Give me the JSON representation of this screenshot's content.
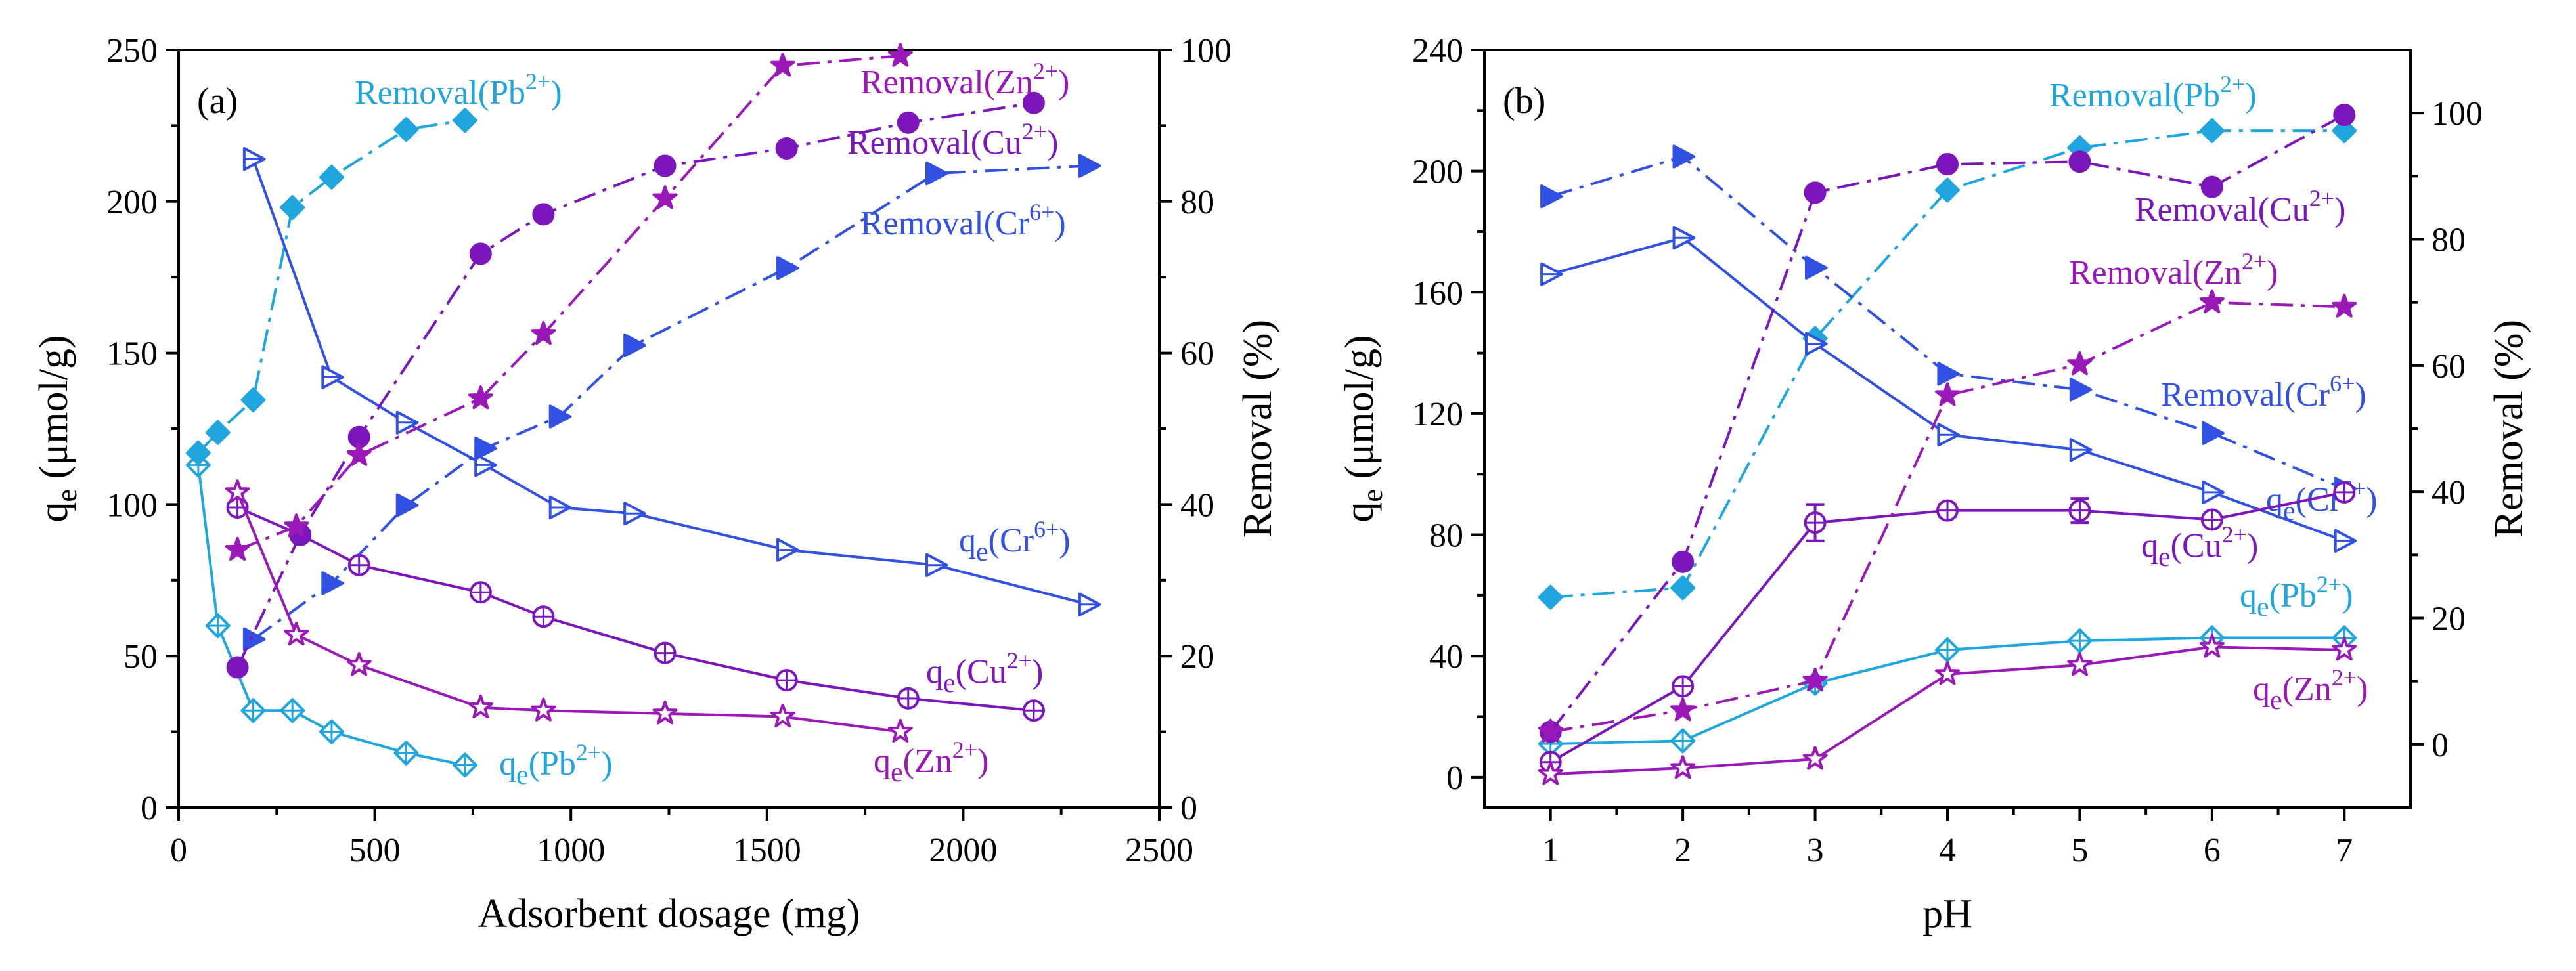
{
  "figure": {
    "colors": {
      "pb": "#1fa6df",
      "cr": "#3051e4",
      "cu": "#7b16bd",
      "zn": "#9a17b8"
    }
  },
  "chart_data": [
    {
      "type": "line",
      "panel_label": "(a)",
      "title": "",
      "xlabel": "Adsorbent dosage (mg)",
      "ylabel_left": "q",
      "ylabel_left_sub": "e",
      "ylabel_left_unit": " (μmol/g)",
      "ylabel_right": "Removal (%)",
      "xlim": [
        0,
        2500
      ],
      "ylim_left": [
        0,
        250
      ],
      "ylim_right": [
        0,
        100
      ],
      "xticks": [
        "0",
        "500",
        "1000",
        "1500",
        "2000",
        "2500"
      ],
      "yticks_left": [
        "0",
        "50",
        "100",
        "150",
        "200",
        "250"
      ],
      "yticks_right": [
        "0",
        "20",
        "40",
        "60",
        "80",
        "100"
      ],
      "series": [
        {
          "name": "qe(Pb2+)",
          "label_main": "q",
          "label_sub": "e",
          "label_rest": "(Pb",
          "label_sup": "2+",
          "label_end": ")",
          "axis": "left",
          "color_key": "pb",
          "marker": "diamond-open",
          "dash": "solid",
          "x": [
            50,
            100,
            190,
            290,
            390,
            580,
            730
          ],
          "y": [
            113,
            60,
            32,
            32,
            25,
            18,
            14
          ]
        },
        {
          "name": "Removal(Pb2+)",
          "label_main": "Removal",
          "label_sub": "",
          "label_rest": "(Pb",
          "label_sup": "2+",
          "label_end": ")",
          "axis": "right",
          "color_key": "pb",
          "marker": "diamond-filled",
          "dash": "dashdot",
          "x": [
            50,
            100,
            190,
            290,
            390,
            580,
            730
          ],
          "y": [
            46.8,
            49.5,
            53.8,
            79.2,
            83.2,
            89.5,
            90.7
          ]
        },
        {
          "name": "qe(Cr6+)",
          "label_main": "q",
          "label_sub": "e",
          "label_rest": "(Cr",
          "label_sup": "6+",
          "label_end": ")",
          "axis": "left",
          "color_key": "cr",
          "marker": "triangle-open",
          "dash": "solid",
          "x": [
            190,
            390,
            580,
            780,
            970,
            1160,
            1550,
            1930,
            2320
          ],
          "y": [
            214,
            142,
            127,
            113,
            99,
            97,
            85,
            80,
            67
          ]
        },
        {
          "name": "Removal(Cr6+)",
          "label_main": "Removal",
          "label_sub": "",
          "label_rest": "(Cr",
          "label_sup": "6+",
          "label_end": ")",
          "axis": "right",
          "color_key": "cr",
          "marker": "triangle-filled",
          "dash": "dashdot",
          "x": [
            190,
            390,
            580,
            780,
            970,
            1160,
            1550,
            1930,
            2320
          ],
          "y": [
            22.2,
            29.6,
            39.9,
            47.4,
            51.6,
            61.0,
            71.2,
            83.7,
            84.7
          ]
        },
        {
          "name": "qe(Cu2+)",
          "label_main": "q",
          "label_sub": "e",
          "label_rest": "(Cu",
          "label_sup": "2+",
          "label_end": ")",
          "axis": "left",
          "color_key": "cu",
          "marker": "circle-open",
          "dash": "solid",
          "x": [
            150,
            310,
            460,
            770,
            930,
            1240,
            1550,
            1860,
            2180
          ],
          "y": [
            99,
            90,
            80,
            71,
            63,
            51,
            42,
            36,
            32
          ]
        },
        {
          "name": "Removal(Cu2+)",
          "label_main": "Removal",
          "label_sub": "",
          "label_rest": "(Cu",
          "label_sup": "2+",
          "label_end": ")",
          "axis": "right",
          "color_key": "cu",
          "marker": "circle-filled",
          "dash": "dashdot",
          "x": [
            150,
            310,
            460,
            770,
            930,
            1240,
            1550,
            1860,
            2180
          ],
          "y": [
            18.5,
            36.0,
            48.9,
            73.1,
            78.3,
            84.7,
            87.0,
            90.4,
            93.0
          ]
        },
        {
          "name": "qe(Zn2+)",
          "label_main": "q",
          "label_sub": "e",
          "label_rest": "(Zn",
          "label_sup": "2+",
          "label_end": ")",
          "axis": "left",
          "color_key": "zn",
          "marker": "star-open",
          "dash": "solid",
          "x": [
            150,
            300,
            460,
            770,
            930,
            1240,
            1540,
            1840
          ],
          "y": [
            104,
            57,
            47,
            33,
            32,
            31,
            30,
            25
          ]
        },
        {
          "name": "Removal(Zn2+)",
          "label_main": "Removal",
          "label_sub": "",
          "label_rest": "(Zn",
          "label_sup": "2+",
          "label_end": ")",
          "axis": "right",
          "color_key": "zn",
          "marker": "star-filled",
          "dash": "dashdot",
          "x": [
            150,
            300,
            460,
            770,
            930,
            1240,
            1540,
            1840
          ],
          "y": [
            34.0,
            37.1,
            46.5,
            54.0,
            62.5,
            80.4,
            97.9,
            99.2
          ]
        }
      ]
    },
    {
      "type": "line",
      "panel_label": "(b)",
      "title": "",
      "xlabel": "pH",
      "ylabel_left": "q",
      "ylabel_left_sub": "e",
      "ylabel_left_unit": " (μmol/g)",
      "ylabel_right": "Removal (%)",
      "xlim": [
        0.5,
        7.5
      ],
      "ylim_left": [
        -10,
        240
      ],
      "ylim_right": [
        -10,
        110
      ],
      "xticks": [
        "1",
        "2",
        "3",
        "4",
        "5",
        "6",
        "7"
      ],
      "yticks_left": [
        "0",
        "40",
        "80",
        "120",
        "160",
        "200",
        "240"
      ],
      "yticks_right": [
        "0",
        "20",
        "40",
        "60",
        "80",
        "100"
      ],
      "series": [
        {
          "name": "qe(Pb2+)",
          "label_main": "q",
          "label_sub": "e",
          "label_rest": "(Pb",
          "label_sup": "2+",
          "label_end": ")",
          "axis": "left",
          "color_key": "pb",
          "marker": "diamond-open",
          "dash": "solid",
          "x": [
            1,
            2,
            3,
            4,
            5,
            6,
            7
          ],
          "y": [
            11,
            12,
            31,
            42,
            45,
            46,
            46
          ]
        },
        {
          "name": "Removal(Pb2+)",
          "label_main": "Removal",
          "label_sub": "",
          "label_rest": "(Pb",
          "label_sup": "2+",
          "label_end": ")",
          "axis": "right",
          "color_key": "pb",
          "marker": "diamond-filled",
          "dash": "dashdot",
          "x": [
            1,
            2,
            3,
            4,
            5,
            6,
            7
          ],
          "y": [
            23.3,
            24.8,
            64.3,
            87.8,
            94.5,
            97.2,
            97.2
          ]
        },
        {
          "name": "qe(Cr6+)",
          "label_main": "q",
          "label_sub": "e",
          "label_rest": "(Cr",
          "label_sup": "6+",
          "label_end": ")",
          "axis": "left",
          "color_key": "cr",
          "marker": "triangle-open",
          "dash": "solid",
          "x": [
            1,
            2,
            3,
            4,
            5,
            6,
            7
          ],
          "y": [
            166,
            178,
            143,
            113,
            108,
            94,
            78
          ]
        },
        {
          "name": "Removal(Cr6+)",
          "label_main": "Removal",
          "label_sub": "",
          "label_rest": "(Cr",
          "label_sup": "6+",
          "label_end": ")",
          "axis": "right",
          "color_key": "cr",
          "marker": "triangle-filled",
          "dash": "dashdot",
          "x": [
            1,
            2,
            3,
            4,
            5,
            6,
            7
          ],
          "y": [
            86.8,
            93.1,
            75.5,
            58.7,
            56.2,
            49.3,
            40.5
          ]
        },
        {
          "name": "qe(Cu2+)",
          "label_main": "q",
          "label_sub": "e",
          "label_rest": "(Cu",
          "label_sup": "2+",
          "label_end": ")",
          "axis": "left",
          "color_key": "cu",
          "marker": "circle-open",
          "dash": "solid",
          "x": [
            1,
            2,
            3,
            4,
            5,
            6,
            7
          ],
          "y": [
            5,
            30,
            84,
            88,
            88,
            85,
            94
          ],
          "error": [
            0,
            0,
            6,
            2,
            4,
            0,
            0
          ]
        },
        {
          "name": "Removal(Cu2+)",
          "label_main": "Removal",
          "label_sub": "",
          "label_rest": "(Cu",
          "label_sup": "2+",
          "label_end": ")",
          "axis": "right",
          "color_key": "cu",
          "marker": "circle-filled",
          "dash": "dashdot",
          "x": [
            1,
            2,
            3,
            4,
            5,
            6,
            7
          ],
          "y": [
            2.0,
            28.9,
            87.4,
            91.9,
            92.3,
            88.3,
            99.7
          ]
        },
        {
          "name": "qe(Zn2+)",
          "label_main": "q",
          "label_sub": "e",
          "label_rest": "(Zn",
          "label_sup": "2+",
          "label_end": ")",
          "axis": "left",
          "color_key": "zn",
          "marker": "star-open",
          "dash": "solid",
          "x": [
            1,
            2,
            3,
            4,
            5,
            6,
            7
          ],
          "y": [
            1,
            3,
            6,
            34,
            37,
            43,
            42
          ]
        },
        {
          "name": "Removal(Zn2+)",
          "label_main": "Removal",
          "label_sub": "",
          "label_rest": "(Zn",
          "label_sup": "2+",
          "label_end": ")",
          "axis": "right",
          "color_key": "zn",
          "marker": "star-filled",
          "dash": "dashdot",
          "x": [
            1,
            2,
            3,
            4,
            5,
            6,
            7
          ],
          "y": [
            2.0,
            5.4,
            10.1,
            55.3,
            60.2,
            70.0,
            69.3
          ]
        }
      ]
    }
  ]
}
